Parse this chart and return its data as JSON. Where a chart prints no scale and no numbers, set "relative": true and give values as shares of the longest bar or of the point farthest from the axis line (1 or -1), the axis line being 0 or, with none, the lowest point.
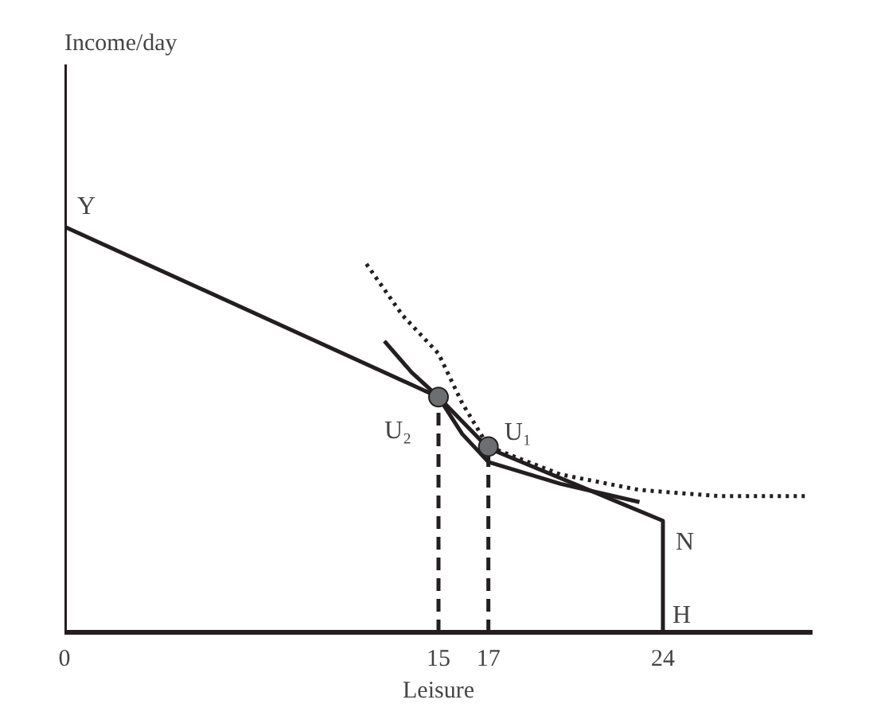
{
  "chart_data": {
    "type": "line",
    "relative": true,
    "xlabel": "Leisure",
    "xlim": [
      0,
      30
    ],
    "xticks": [
      0,
      15,
      17,
      24
    ],
    "grid": false,
    "series": [
      {
        "color": "#231f20",
        "line_style": "solid",
        "x": [
          0,
          15,
          17,
          24,
          24
        ],
        "values": [
          1,
          0.58,
          0.454,
          0.275,
          0
        ]
      },
      {
        "color": "#231f20",
        "line_style": "solid",
        "x": [
          12.83,
          13.92,
          15,
          15.95,
          17,
          19.9,
          23.06
        ],
        "values": [
          0.718,
          0.641,
          0.58,
          0.489,
          0.42,
          0.366,
          0.321
        ]
      },
      {
        "color": "#231f20",
        "line_style": "dotted",
        "x": [
          12.11,
          13.55,
          15,
          15.95,
          17,
          19.9,
          23.06,
          26.2,
          29.8
        ],
        "values": [
          0.908,
          0.782,
          0.687,
          0.565,
          0.458,
          0.389,
          0.351,
          0.336,
          0.336
        ]
      },
      {
        "color": "#231f20",
        "line_style": "dashed",
        "x": [
          15,
          15
        ],
        "values": [
          0,
          0.58
        ]
      },
      {
        "color": "#231f20",
        "line_style": "dashed",
        "x": [
          17,
          17
        ],
        "values": [
          0,
          0.458
        ]
      },
      {
        "type": "scatter",
        "color": "#6d6e70",
        "marker": "circle",
        "x": [
          15,
          17
        ],
        "values": [
          0.58,
          0.458
        ]
      }
    ],
    "annotations": [
      "Income/day",
      {
        "text": "Y",
        "x": 0,
        "y": 1
      },
      {
        "text": "N",
        "x": 24,
        "y": 0.275
      },
      {
        "text": "H",
        "x": 24,
        "y": 0
      },
      {
        "text": "U₂",
        "x": 15,
        "y": 0.58
      },
      {
        "text": "U₁",
        "x": 17,
        "y": 0.458
      }
    ]
  }
}
